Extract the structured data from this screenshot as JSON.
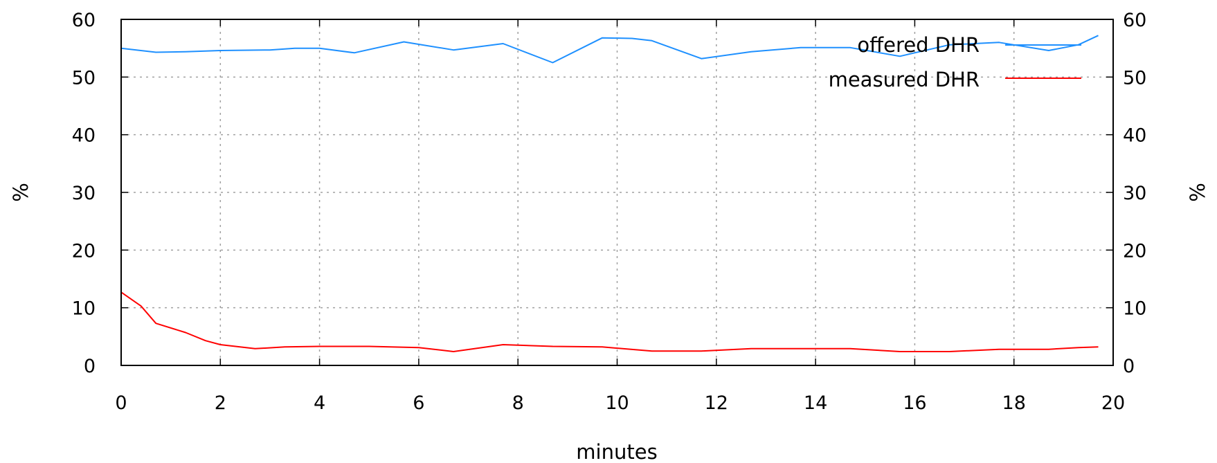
{
  "chart_data": {
    "type": "line",
    "xlabel": "minutes",
    "ylabel": "%",
    "y2label": "%",
    "xlim": [
      0,
      20
    ],
    "ylim": [
      0,
      60
    ],
    "xticks": [
      "0",
      "2",
      "4",
      "6",
      "8",
      "10",
      "12",
      "14",
      "16",
      "18",
      "20"
    ],
    "yticks": [
      "0",
      "10",
      "20",
      "30",
      "40",
      "50",
      "60"
    ],
    "y2ticks": [
      "0",
      "10",
      "20",
      "30",
      "40",
      "50",
      "60"
    ],
    "grid": true,
    "legend_position": "top-right",
    "series": [
      {
        "name": "offered DHR",
        "color": "#1e90ff",
        "points": [
          [
            0,
            55
          ],
          [
            0.7,
            54.3
          ],
          [
            1.3,
            54.4
          ],
          [
            2,
            54.6
          ],
          [
            3,
            54.7
          ],
          [
            3.5,
            55
          ],
          [
            4,
            55
          ],
          [
            4.7,
            54.2
          ],
          [
            5.7,
            56.1
          ],
          [
            6.7,
            54.7
          ],
          [
            7.7,
            55.8
          ],
          [
            8.7,
            52.5
          ],
          [
            9.7,
            56.8
          ],
          [
            10.3,
            56.7
          ],
          [
            10.7,
            56.3
          ],
          [
            11.7,
            53.2
          ],
          [
            12.7,
            54.4
          ],
          [
            13.7,
            55.1
          ],
          [
            14.7,
            55.1
          ],
          [
            15.7,
            53.6
          ],
          [
            16.7,
            55.6
          ],
          [
            17.7,
            56.0
          ],
          [
            18.7,
            54.6
          ],
          [
            19.3,
            55.6
          ],
          [
            19.7,
            57.2
          ]
        ]
      },
      {
        "name": "measured DHR",
        "color": "#ff0000",
        "points": [
          [
            0,
            12.7
          ],
          [
            0.4,
            10.3
          ],
          [
            0.7,
            7.3
          ],
          [
            1.3,
            5.7
          ],
          [
            1.7,
            4.3
          ],
          [
            2,
            3.6
          ],
          [
            2.7,
            2.9
          ],
          [
            3.3,
            3.2
          ],
          [
            4,
            3.3
          ],
          [
            5,
            3.3
          ],
          [
            6,
            3.1
          ],
          [
            6.7,
            2.4
          ],
          [
            7.7,
            3.6
          ],
          [
            8.7,
            3.3
          ],
          [
            9.7,
            3.2
          ],
          [
            10.7,
            2.5
          ],
          [
            11.7,
            2.5
          ],
          [
            12.7,
            2.9
          ],
          [
            13.7,
            2.9
          ],
          [
            14.7,
            2.9
          ],
          [
            15.7,
            2.4
          ],
          [
            16.7,
            2.4
          ],
          [
            17.7,
            2.8
          ],
          [
            18.7,
            2.8
          ],
          [
            19.3,
            3.1
          ],
          [
            19.7,
            3.2
          ]
        ]
      }
    ]
  }
}
